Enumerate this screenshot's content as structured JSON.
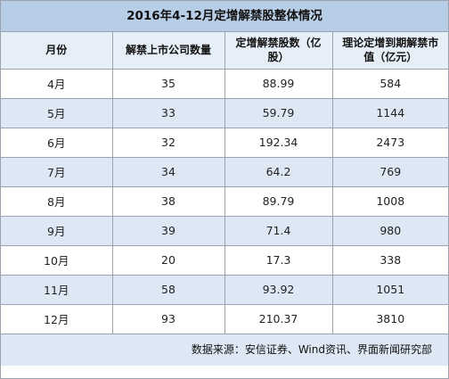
{
  "title": "2016年4-12月定增解禁股整体情况",
  "headers": [
    "月份",
    "解禁上市公司数量",
    "定增解禁股数（亿股）",
    "理论定增到期解禁市值（亿元）"
  ],
  "footer": "数据来源：安信证券、Wind资讯、界面新闻研究部",
  "colors": {
    "title_bg": "#b8cde6",
    "stripe_bg": "#dde8f4",
    "border": "#9aa3ad"
  },
  "chart_data": {
    "type": "table",
    "title": "2016年4-12月定增解禁股整体情况",
    "columns": [
      "月份",
      "解禁上市公司数量",
      "定增解禁股数（亿股）",
      "理论定增到期解禁市值（亿元）"
    ],
    "rows": [
      [
        "4月",
        "35",
        "88.99",
        "584"
      ],
      [
        "5月",
        "33",
        "59.79",
        "1144"
      ],
      [
        "6月",
        "32",
        "192.34",
        "2473"
      ],
      [
        "7月",
        "34",
        "64.2",
        "769"
      ],
      [
        "8月",
        "38",
        "89.79",
        "1008"
      ],
      [
        "9月",
        "39",
        "71.4",
        "980"
      ],
      [
        "10月",
        "20",
        "17.3",
        "338"
      ],
      [
        "11月",
        "58",
        "93.92",
        "1051"
      ],
      [
        "12月",
        "93",
        "210.37",
        "3810"
      ]
    ],
    "source": "数据来源：安信证券、Wind资讯、界面新闻研究部"
  }
}
